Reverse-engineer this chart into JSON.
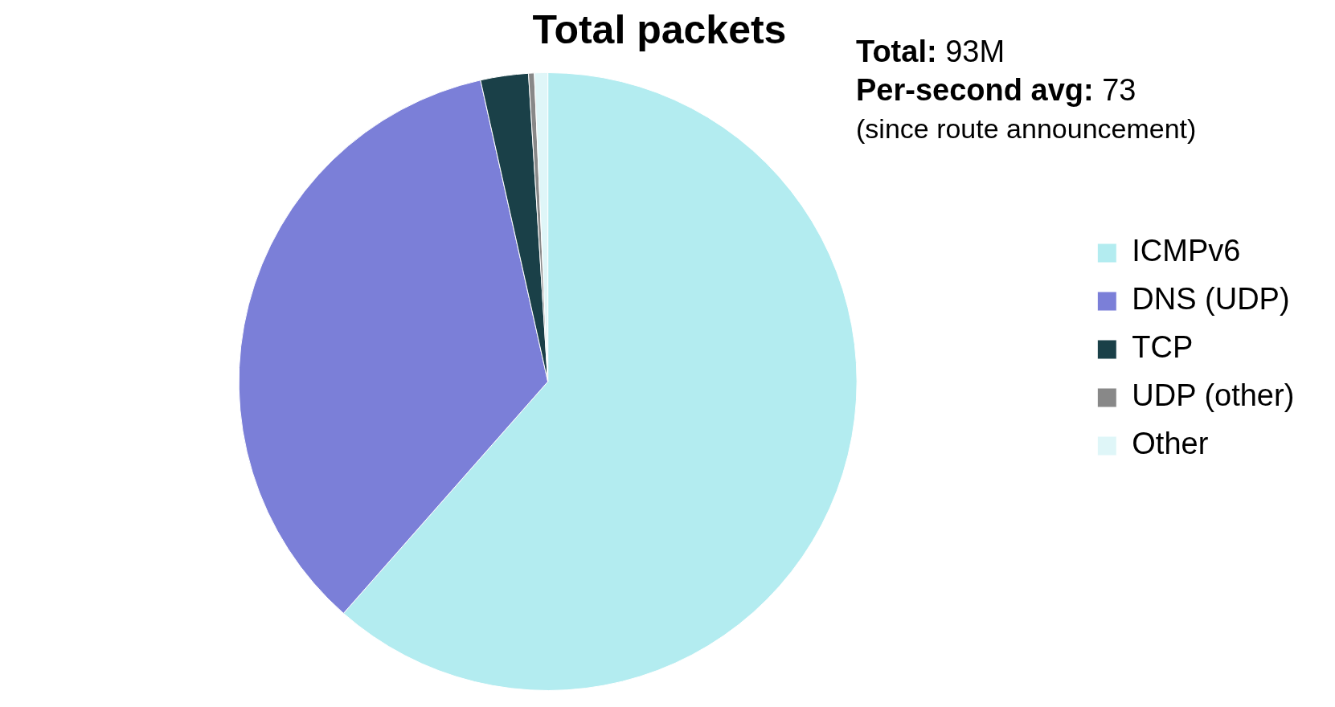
{
  "chart_data": {
    "type": "pie",
    "title": "Total packets",
    "categories": [
      "ICMPv6",
      "DNS (UDP)",
      "TCP",
      "UDP (other)",
      "Other"
    ],
    "values": [
      61.5,
      35,
      2.5,
      0.3,
      0.7
    ],
    "colors": [
      "#b3ecf0",
      "#7b7fd8",
      "#1a4048",
      "#888888",
      "#dff6f8"
    ],
    "legend": "right",
    "annotations": [
      "Total: 93M",
      "Per-second avg: 73",
      "(since route announcement)"
    ]
  }
}
